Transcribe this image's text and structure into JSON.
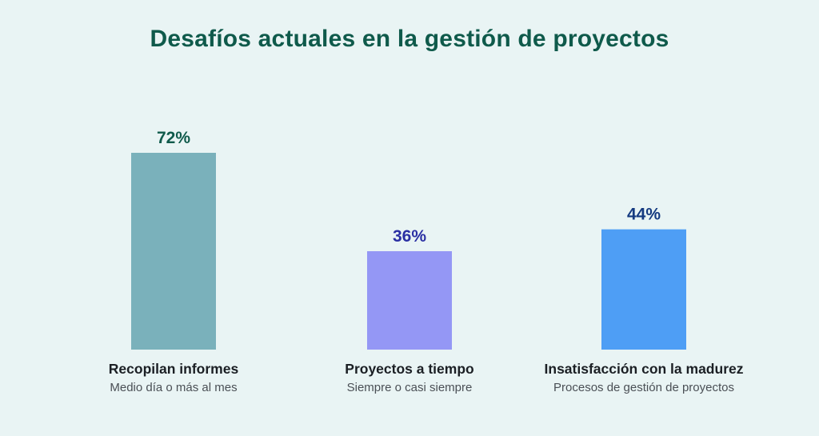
{
  "chart_data": {
    "type": "bar",
    "title": "Desafíos actuales en la gestión de proyectos",
    "categories": [
      "Recopilan informes",
      "Proyectos a tiempo",
      "Insatisfacción con la madurez"
    ],
    "subcategories": [
      "Medio día o más al mes",
      "Siempre o casi siempre",
      "Procesos de gestión de proyectos"
    ],
    "values": [
      72,
      36,
      44
    ],
    "value_labels": [
      "72%",
      "36%",
      "44%"
    ],
    "unit": "%",
    "ylim": [
      0,
      72
    ],
    "grid": false,
    "legend": "none",
    "bar_colors": [
      "#7ab1bb",
      "#9497f5",
      "#4e9ef5"
    ],
    "value_label_colors": [
      "#0f5a4b",
      "#2a2fa3",
      "#143a80"
    ]
  }
}
